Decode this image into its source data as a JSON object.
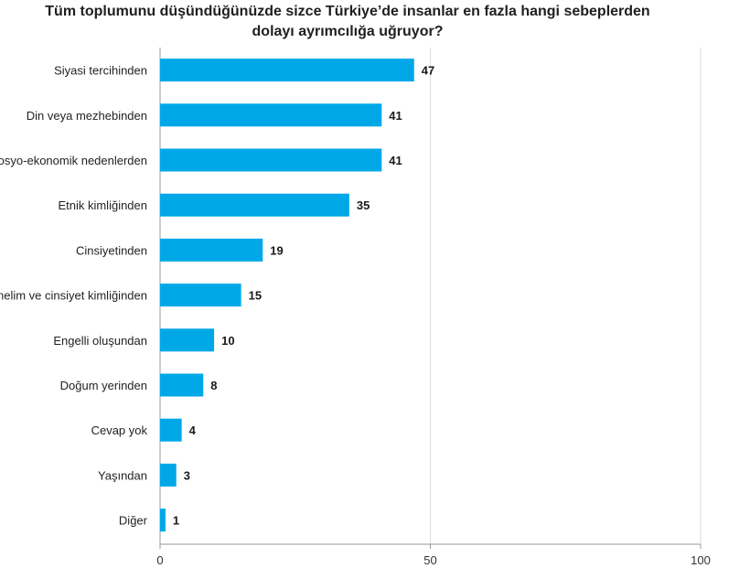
{
  "chart_data": {
    "type": "bar",
    "orientation": "horizontal",
    "title_lines": [
      "Tüm toplumunu düşündüğünüzde sizce Türkiye’de insanlar en fazla hangi sebeplerden",
      "dolayı ayrımcılığa uğruyor?"
    ],
    "categories": [
      "Siyasi tercihinden",
      "Din veya mezhebinden",
      "Sosyo-ekonomik nedenlerden",
      "Etnik kimliğinden",
      "Cinsiyetinden",
      "Cinsel yönelim ve cinsiyet kimliğinden",
      "Engelli oluşundan",
      "Doğum yerinden",
      "Cevap yok",
      "Yaşından",
      "Diğer"
    ],
    "values": [
      47,
      41,
      41,
      35,
      19,
      15,
      10,
      8,
      4,
      3,
      1
    ],
    "value_labels": [
      "47",
      "41",
      "41",
      "35",
      "19",
      "15",
      "10",
      "8",
      "4",
      "3",
      "1"
    ],
    "xlim": [
      0,
      100
    ],
    "x_ticks": [
      0,
      50,
      100
    ],
    "x_tick_labels": [
      "0",
      "50",
      "100"
    ],
    "xlabel": "",
    "ylabel": "",
    "grid": "vertical lines at 0, 50 and 100",
    "legend": "none",
    "colors": {
      "bar": "#00a8e8",
      "axis": "#999999",
      "grid": "#dddddd"
    }
  }
}
